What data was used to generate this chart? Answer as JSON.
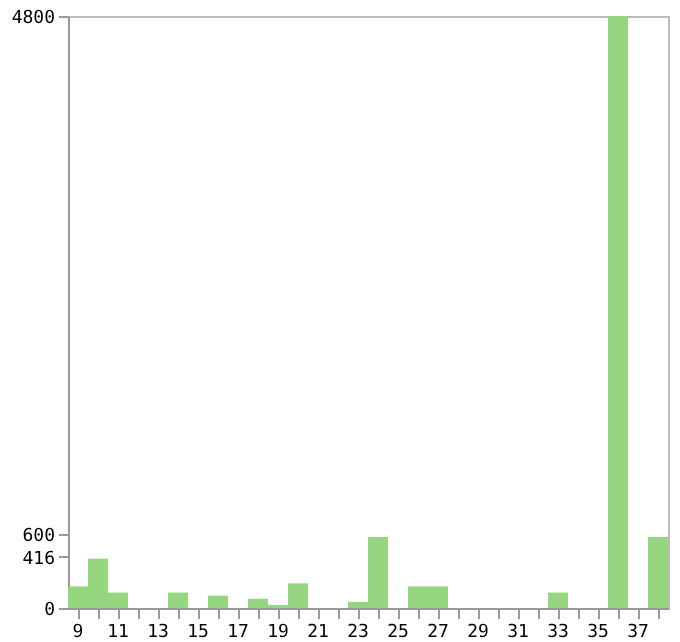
{
  "chart_data": {
    "type": "bar",
    "categories": [
      "9",
      null,
      "11",
      null,
      "13",
      null,
      "15",
      null,
      "17",
      null,
      "19",
      null,
      "21",
      null,
      "23",
      null,
      "25",
      null,
      "27",
      null,
      "29",
      null,
      "31",
      null,
      "33",
      null,
      "35",
      null,
      "37",
      null
    ],
    "values": [
      175,
      400,
      125,
      0,
      0,
      125,
      0,
      100,
      0,
      75,
      25,
      200,
      0,
      0,
      50,
      575,
      0,
      175,
      175,
      0,
      0,
      0,
      0,
      0,
      125,
      0,
      0,
      4800,
      0,
      575
    ],
    "color": "#96d680",
    "ylim": [
      0,
      4800
    ],
    "yticks": [
      0,
      416,
      600,
      {
        "value": 4800,
        "label": "4800"
      }
    ],
    "grid": false
  }
}
